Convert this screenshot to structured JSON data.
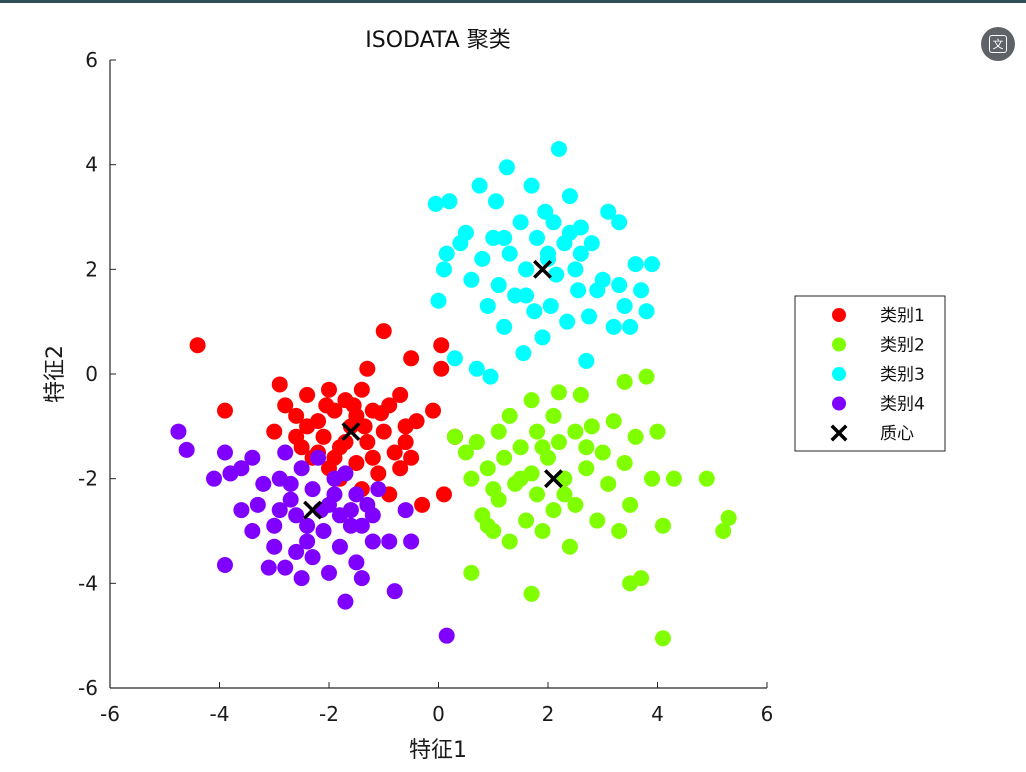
{
  "export_button": {
    "icon": "translate-icon",
    "glyph": "文"
  },
  "chart_data": {
    "type": "scatter",
    "title": "ISODATA  聚类",
    "xlabel": "特征1",
    "ylabel": "特征2",
    "xlim": [
      -6,
      6
    ],
    "ylim": [
      -6,
      6
    ],
    "xticks": [
      -6,
      -4,
      -2,
      0,
      2,
      4,
      6
    ],
    "yticks": [
      -6,
      -4,
      -2,
      0,
      2,
      4,
      6
    ],
    "grid": false,
    "legend_position": "right",
    "legend": [
      {
        "label": "类别1",
        "marker": "dot",
        "color": "#ff0000"
      },
      {
        "label": "类别2",
        "marker": "dot",
        "color": "#80ff00"
      },
      {
        "label": "类别3",
        "marker": "dot",
        "color": "#00ffff"
      },
      {
        "label": "类别4",
        "marker": "dot",
        "color": "#8000ff"
      },
      {
        "label": "质心",
        "marker": "x",
        "color": "#000000"
      }
    ],
    "series": [
      {
        "name": "类别1",
        "color": "#ff0000",
        "points": [
          [
            -4.4,
            0.55
          ],
          [
            -3.9,
            -0.7
          ],
          [
            -2.9,
            -0.2
          ],
          [
            -3.0,
            -1.1
          ],
          [
            -2.8,
            -0.6
          ],
          [
            -2.6,
            -0.8
          ],
          [
            -2.5,
            -1.4
          ],
          [
            -2.4,
            -0.4
          ],
          [
            -2.3,
            -1.6
          ],
          [
            -2.2,
            -0.9
          ],
          [
            -2.1,
            -1.2
          ],
          [
            -2.0,
            -0.3
          ],
          [
            -2.0,
            -1.8
          ],
          [
            -1.9,
            -0.7
          ],
          [
            -1.8,
            -1.4
          ],
          [
            -1.8,
            -2.0
          ],
          [
            -1.7,
            -0.5
          ],
          [
            -1.6,
            -1.0
          ],
          [
            -1.5,
            -1.7
          ],
          [
            -1.5,
            -0.8
          ],
          [
            -1.4,
            -0.3
          ],
          [
            -1.4,
            -2.2
          ],
          [
            -1.3,
            -1.3
          ],
          [
            -1.3,
            0.1
          ],
          [
            -1.2,
            -0.7
          ],
          [
            -1.1,
            -1.9
          ],
          [
            -1.0,
            -1.1
          ],
          [
            -1.0,
            0.82
          ],
          [
            -0.9,
            -0.6
          ],
          [
            -0.9,
            -2.3
          ],
          [
            -0.8,
            -1.5
          ],
          [
            -0.7,
            -0.4
          ],
          [
            -0.7,
            -1.8
          ],
          [
            -0.6,
            -1.0
          ],
          [
            -0.5,
            0.3
          ],
          [
            -0.5,
            -1.6
          ],
          [
            -0.4,
            -0.9
          ],
          [
            -0.3,
            -2.5
          ],
          [
            -0.1,
            -0.7
          ],
          [
            0.05,
            0.55
          ],
          [
            0.05,
            0.1
          ],
          [
            0.1,
            -2.3
          ],
          [
            0.3,
            -1.2
          ],
          [
            -2.6,
            -1.2
          ],
          [
            -2.2,
            -1.5
          ],
          [
            -1.7,
            -1.3
          ],
          [
            -1.2,
            -1.6
          ],
          [
            -0.6,
            -1.3
          ],
          [
            -2.4,
            -1.0
          ],
          [
            -1.9,
            -1.6
          ],
          [
            -1.55,
            -0.6
          ],
          [
            -1.05,
            -0.75
          ],
          [
            -2.05,
            -0.6
          ],
          [
            -1.35,
            -1.0
          ]
        ]
      },
      {
        "name": "类别2",
        "color": "#80ff00",
        "points": [
          [
            0.3,
            -1.2
          ],
          [
            0.5,
            -1.5
          ],
          [
            0.6,
            -2.0
          ],
          [
            0.6,
            -3.8
          ],
          [
            0.7,
            -1.3
          ],
          [
            0.8,
            -2.7
          ],
          [
            0.9,
            -1.8
          ],
          [
            1.0,
            -3.0
          ],
          [
            1.1,
            -1.1
          ],
          [
            1.1,
            -2.4
          ],
          [
            1.2,
            -1.6
          ],
          [
            1.3,
            -3.2
          ],
          [
            1.3,
            -0.8
          ],
          [
            1.4,
            -2.1
          ],
          [
            1.5,
            -1.4
          ],
          [
            1.6,
            -2.8
          ],
          [
            1.7,
            -0.5
          ],
          [
            1.7,
            -1.9
          ],
          [
            1.8,
            -2.3
          ],
          [
            1.8,
            -1.1
          ],
          [
            1.9,
            -3.0
          ],
          [
            2.0,
            -1.6
          ],
          [
            2.1,
            -0.8
          ],
          [
            2.1,
            -2.6
          ],
          [
            2.2,
            -0.35
          ],
          [
            2.2,
            -1.3
          ],
          [
            2.3,
            -2.0
          ],
          [
            2.4,
            -3.3
          ],
          [
            2.5,
            -1.1
          ],
          [
            2.5,
            -2.5
          ],
          [
            2.6,
            -0.4
          ],
          [
            2.7,
            -1.8
          ],
          [
            2.8,
            -1.0
          ],
          [
            2.9,
            -2.8
          ],
          [
            3.0,
            -1.5
          ],
          [
            3.1,
            -2.1
          ],
          [
            3.2,
            -0.9
          ],
          [
            3.3,
            -3.0
          ],
          [
            3.4,
            -1.7
          ],
          [
            3.4,
            -0.15
          ],
          [
            3.5,
            -2.5
          ],
          [
            3.5,
            -4.0
          ],
          [
            3.6,
            -1.2
          ],
          [
            3.7,
            -3.9
          ],
          [
            3.8,
            -0.05
          ],
          [
            3.9,
            -2.0
          ],
          [
            4.0,
            -1.1
          ],
          [
            4.1,
            -2.9
          ],
          [
            4.1,
            -5.05
          ],
          [
            4.3,
            -2.0
          ],
          [
            4.9,
            -2.0
          ],
          [
            5.2,
            -3.0
          ],
          [
            5.3,
            -2.75
          ],
          [
            1.7,
            -4.2
          ],
          [
            1.0,
            -2.2
          ],
          [
            1.5,
            -2.0
          ],
          [
            2.3,
            -2.3
          ],
          [
            2.7,
            -1.4
          ],
          [
            0.9,
            -2.9
          ],
          [
            1.9,
            -1.4
          ]
        ]
      },
      {
        "name": "类别3",
        "color": "#00ffff",
        "points": [
          [
            -0.05,
            3.25
          ],
          [
            0.0,
            1.4
          ],
          [
            0.1,
            2.0
          ],
          [
            0.15,
            2.3
          ],
          [
            0.3,
            0.3
          ],
          [
            0.4,
            2.5
          ],
          [
            0.5,
            2.7
          ],
          [
            0.6,
            1.8
          ],
          [
            0.7,
            0.1
          ],
          [
            0.75,
            3.6
          ],
          [
            0.8,
            2.2
          ],
          [
            0.9,
            1.3
          ],
          [
            0.95,
            -0.05
          ],
          [
            1.0,
            2.6
          ],
          [
            1.05,
            3.3
          ],
          [
            1.1,
            1.7
          ],
          [
            1.2,
            0.9
          ],
          [
            1.25,
            3.95
          ],
          [
            1.3,
            2.3
          ],
          [
            1.4,
            1.5
          ],
          [
            1.5,
            2.9
          ],
          [
            1.55,
            0.4
          ],
          [
            1.6,
            2.0
          ],
          [
            1.7,
            3.6
          ],
          [
            1.75,
            1.2
          ],
          [
            1.8,
            2.6
          ],
          [
            1.9,
            0.7
          ],
          [
            1.95,
            3.1
          ],
          [
            2.0,
            2.2
          ],
          [
            2.05,
            1.3
          ],
          [
            2.1,
            2.9
          ],
          [
            2.15,
            1.9
          ],
          [
            2.2,
            4.3
          ],
          [
            2.3,
            2.5
          ],
          [
            2.35,
            1.0
          ],
          [
            2.4,
            3.4
          ],
          [
            2.5,
            2.0
          ],
          [
            2.55,
            1.6
          ],
          [
            2.6,
            2.8
          ],
          [
            2.7,
            0.25
          ],
          [
            2.75,
            1.1
          ],
          [
            2.8,
            2.5
          ],
          [
            2.9,
            1.6
          ],
          [
            3.0,
            1.8
          ],
          [
            3.1,
            3.1
          ],
          [
            3.2,
            0.9
          ],
          [
            3.3,
            2.9
          ],
          [
            3.4,
            1.3
          ],
          [
            3.5,
            0.9
          ],
          [
            3.6,
            2.1
          ],
          [
            3.7,
            1.6
          ],
          [
            3.8,
            1.2
          ],
          [
            3.9,
            2.1
          ],
          [
            1.2,
            2.6
          ],
          [
            2.6,
            2.3
          ],
          [
            1.6,
            1.5
          ],
          [
            3.3,
            1.7
          ],
          [
            2.0,
            2.3
          ],
          [
            0.2,
            3.3
          ],
          [
            2.4,
            2.7
          ]
        ]
      },
      {
        "name": "类别4",
        "color": "#8000ff",
        "points": [
          [
            -4.75,
            -1.1
          ],
          [
            -4.6,
            -1.45
          ],
          [
            -4.1,
            -2.0
          ],
          [
            -3.9,
            -1.5
          ],
          [
            -3.9,
            -3.65
          ],
          [
            -3.8,
            -1.9
          ],
          [
            -3.6,
            -1.8
          ],
          [
            -3.6,
            -2.6
          ],
          [
            -3.4,
            -3.0
          ],
          [
            -3.4,
            -1.6
          ],
          [
            -3.2,
            -2.1
          ],
          [
            -3.1,
            -3.7
          ],
          [
            -3.0,
            -3.3
          ],
          [
            -3.0,
            -2.9
          ],
          [
            -2.9,
            -2.0
          ],
          [
            -2.8,
            -1.5
          ],
          [
            -2.8,
            -3.7
          ],
          [
            -2.7,
            -2.4
          ],
          [
            -2.6,
            -3.4
          ],
          [
            -2.5,
            -1.8
          ],
          [
            -2.5,
            -3.9
          ],
          [
            -2.4,
            -2.9
          ],
          [
            -2.3,
            -2.2
          ],
          [
            -2.3,
            -3.5
          ],
          [
            -2.2,
            -1.6
          ],
          [
            -2.1,
            -3.0
          ],
          [
            -2.0,
            -2.5
          ],
          [
            -2.0,
            -3.8
          ],
          [
            -1.9,
            -2.0
          ],
          [
            -1.8,
            -3.3
          ],
          [
            -1.8,
            -2.7
          ],
          [
            -1.7,
            -1.9
          ],
          [
            -1.7,
            -4.35
          ],
          [
            -1.6,
            -2.9
          ],
          [
            -1.5,
            -3.6
          ],
          [
            -1.5,
            -2.3
          ],
          [
            -1.4,
            -2.9
          ],
          [
            -1.4,
            -3.9
          ],
          [
            -1.3,
            -2.5
          ],
          [
            -1.2,
            -3.2
          ],
          [
            -1.1,
            -2.2
          ],
          [
            -0.9,
            -3.2
          ],
          [
            -0.8,
            -4.15
          ],
          [
            -0.6,
            -2.6
          ],
          [
            -0.5,
            -3.2
          ],
          [
            0.15,
            -5.0
          ],
          [
            -2.6,
            -2.7
          ],
          [
            -2.15,
            -2.6
          ],
          [
            -1.9,
            -2.3
          ],
          [
            -2.4,
            -3.2
          ],
          [
            -3.3,
            -2.5
          ],
          [
            -2.9,
            -2.6
          ],
          [
            -1.6,
            -2.6
          ],
          [
            -2.7,
            -2.1
          ],
          [
            -1.2,
            -2.7
          ]
        ]
      }
    ],
    "centroids": [
      {
        "cluster": "类别1",
        "x": -1.6,
        "y": -1.1
      },
      {
        "cluster": "类别2",
        "x": 2.1,
        "y": -2.0
      },
      {
        "cluster": "类别3",
        "x": 1.9,
        "y": 2.0
      },
      {
        "cluster": "类别4",
        "x": -2.3,
        "y": -2.6
      }
    ]
  }
}
